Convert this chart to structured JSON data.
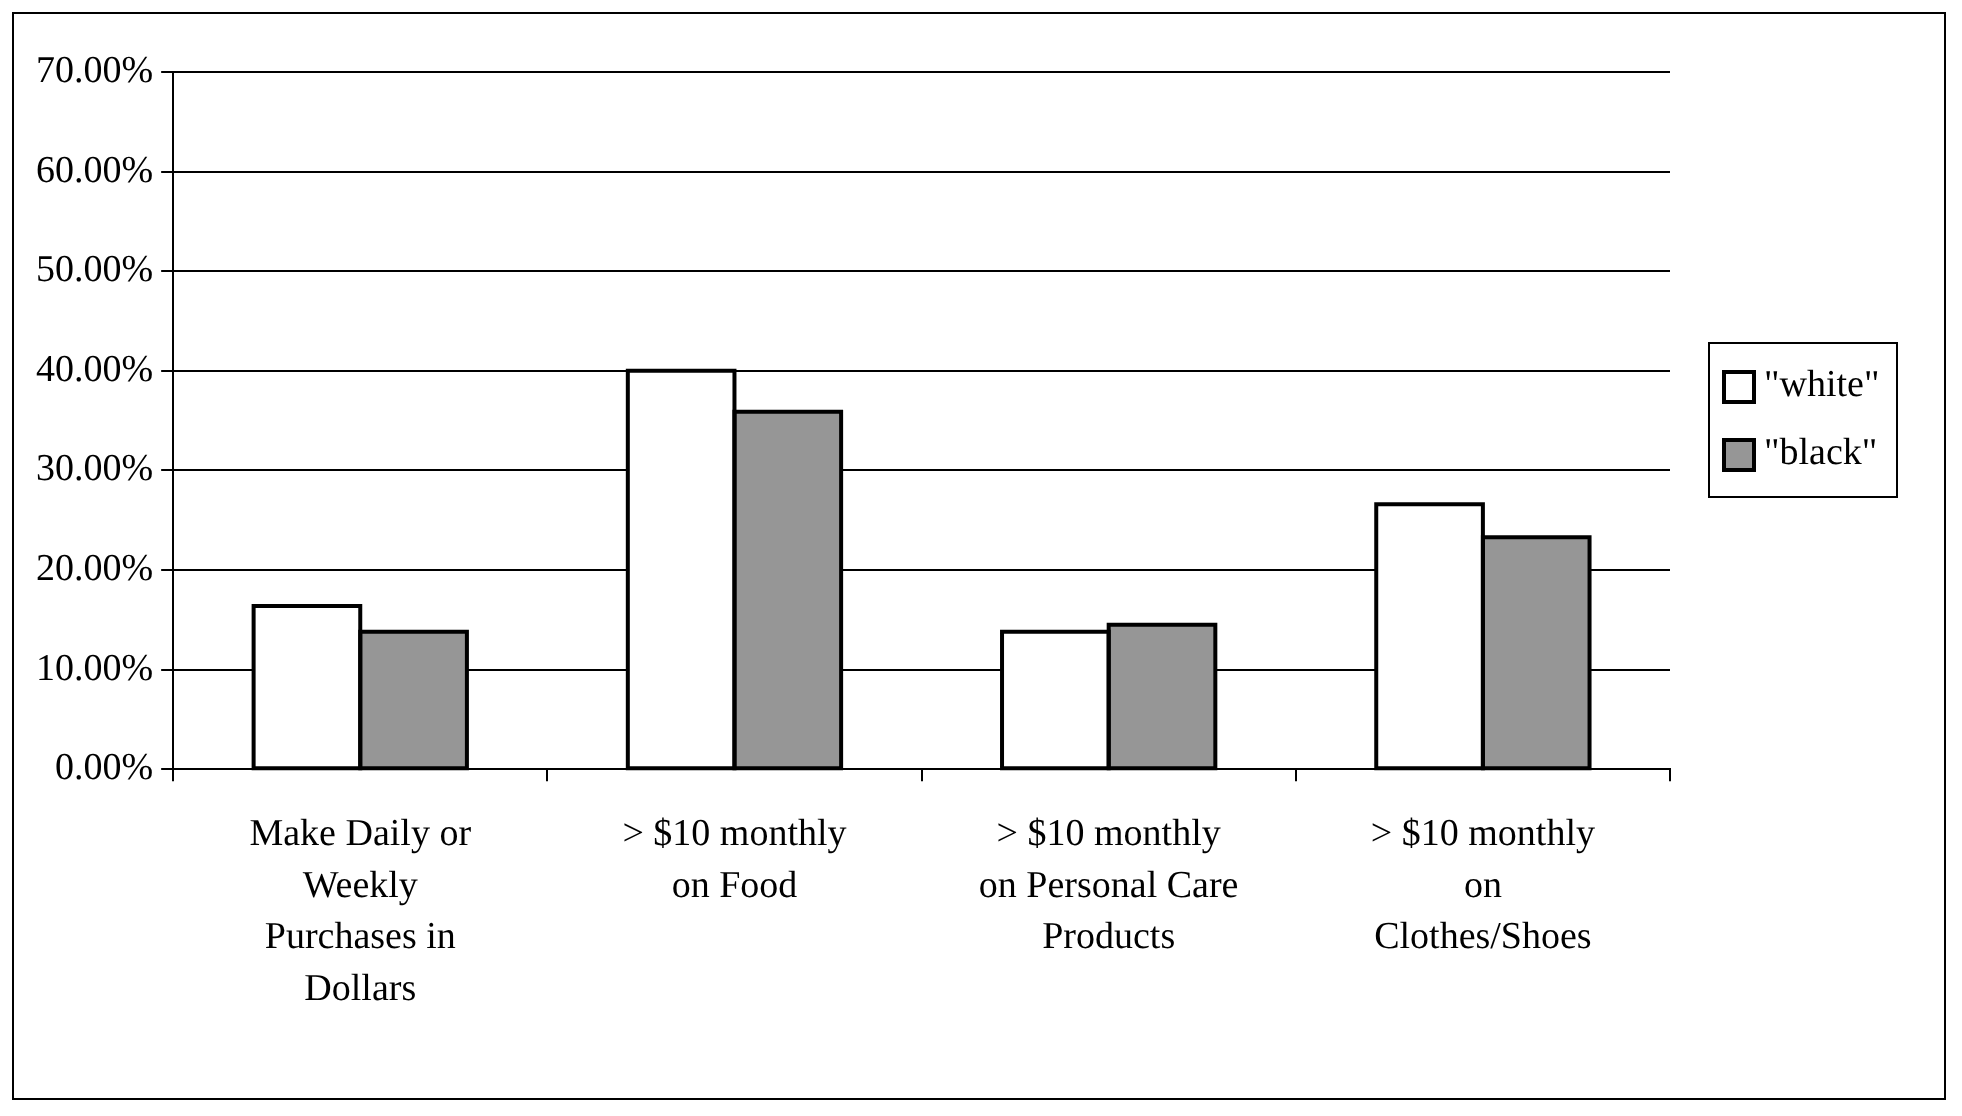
{
  "chart_data": {
    "type": "bar",
    "categories": [
      "Make Daily or Weekly Purchases in Dollars",
      "> $10 monthly on Food",
      "> $10 monthly on Personal Care Products",
      "> $10 monthly on Clothes/Shoes"
    ],
    "series": [
      {
        "name": "\"white\"",
        "color": "#ffffff",
        "values": [
          16.4,
          40,
          13.8,
          26.6
        ]
      },
      {
        "name": "\"black\"",
        "color": "#969696",
        "values": [
          13.8,
          35.9,
          14.5,
          23.3
        ]
      }
    ],
    "ylim": [
      0,
      70
    ],
    "yticks": [
      {
        "value": 0,
        "label": "0.00%"
      },
      {
        "value": 10,
        "label": "10.00%"
      },
      {
        "value": 20,
        "label": "20.00%"
      },
      {
        "value": 30,
        "label": "30.00%"
      },
      {
        "value": 40,
        "label": "40.00%"
      },
      {
        "value": 50,
        "label": "50.00%"
      },
      {
        "value": 60,
        "label": "60.00%"
      },
      {
        "value": 70,
        "label": "70.00%"
      }
    ],
    "grid": "y",
    "legend": "right"
  }
}
